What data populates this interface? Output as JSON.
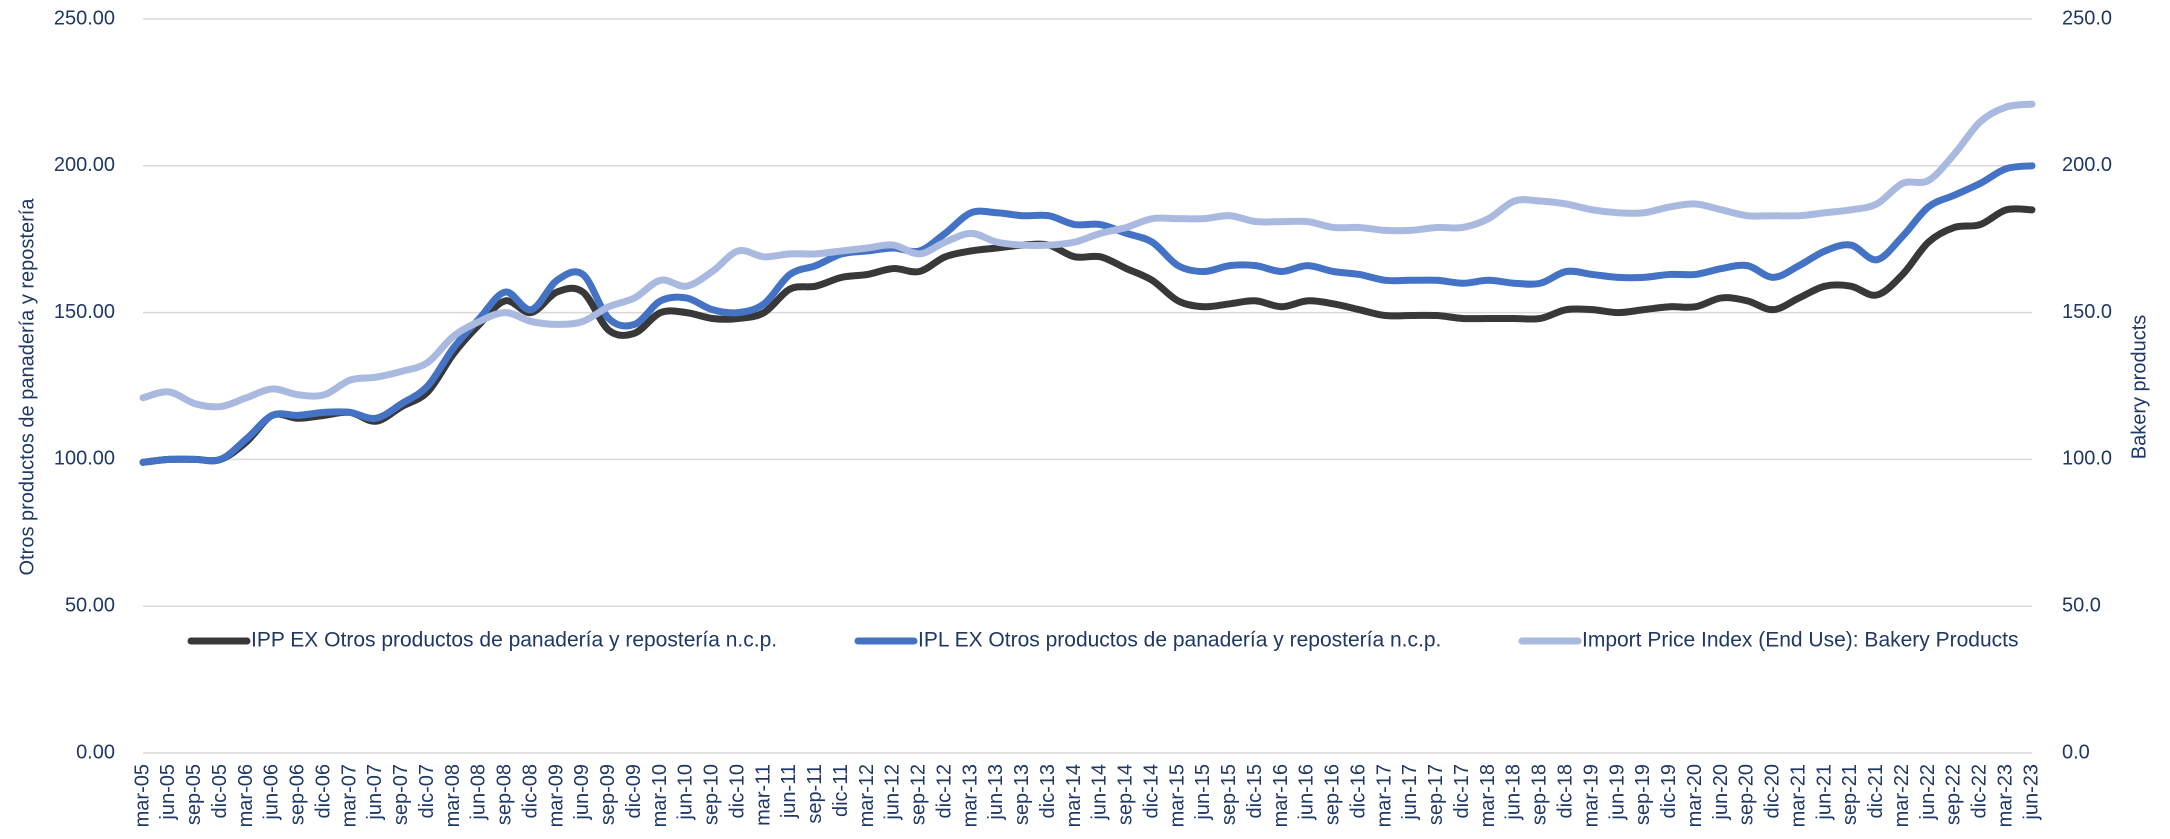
{
  "chart_data": {
    "type": "line",
    "y_label": "Otros productos de panadería y repostería",
    "y2_label": "Bakery products",
    "categories": [
      "mar-05",
      "jun-05",
      "sep-05",
      "dic-05",
      "mar-06",
      "jun-06",
      "sep-06",
      "dic-06",
      "mar-07",
      "jun-07",
      "sep-07",
      "dic-07",
      "mar-08",
      "jun-08",
      "sep-08",
      "dic-08",
      "mar-09",
      "jun-09",
      "sep-09",
      "dic-09",
      "mar-10",
      "jun-10",
      "sep-10",
      "dic-10",
      "mar-11",
      "jun-11",
      "sep-11",
      "dic-11",
      "mar-12",
      "jun-12",
      "sep-12",
      "dic-12",
      "mar-13",
      "jun-13",
      "sep-13",
      "dic-13",
      "mar-14",
      "jun-14",
      "sep-14",
      "dic-14",
      "mar-15",
      "jun-15",
      "sep-15",
      "dic-15",
      "mar-16",
      "jun-16",
      "sep-16",
      "dic-16",
      "mar-17",
      "jun-17",
      "sep-17",
      "dic-17",
      "mar-18",
      "jun-18",
      "sep-18",
      "dic-18",
      "mar-19",
      "jun-19",
      "sep-19",
      "dic-19",
      "mar-20",
      "jun-20",
      "sep-20",
      "dic-20",
      "mar-21",
      "jun-21",
      "sep-21",
      "dic-21",
      "mar-22",
      "jun-22",
      "sep-22",
      "dic-22",
      "mar-23",
      "jun-23"
    ],
    "series": [
      {
        "name": "IPP EX Otros productos de panadería y repostería n.c.p.",
        "color": "#383838",
        "values": [
          99,
          100,
          100,
          100,
          106,
          115,
          114,
          115,
          116,
          113,
          118,
          123,
          136,
          146,
          154,
          150,
          157,
          157,
          144,
          143,
          150,
          150,
          148,
          148,
          150,
          158,
          159,
          162,
          163,
          165,
          164,
          169,
          171,
          172,
          173,
          173,
          169,
          169,
          165,
          161,
          154,
          152,
          153,
          154,
          152,
          154,
          153,
          151,
          149,
          149,
          149,
          148,
          148,
          148,
          148,
          151,
          151,
          150,
          151,
          152,
          152,
          155,
          154,
          151,
          155,
          159,
          159,
          156,
          163,
          174,
          179,
          180,
          185,
          185
        ]
      },
      {
        "name": "IPL EX Otros productos de panadería y repostería n.c.p.",
        "color": "#4472c4",
        "values": [
          99,
          100,
          100,
          100,
          107,
          115,
          115,
          116,
          116,
          114,
          119,
          125,
          138,
          148,
          157,
          151,
          161,
          163,
          148,
          146,
          154,
          155,
          151,
          150,
          153,
          163,
          166,
          170,
          171,
          172,
          171,
          177,
          184,
          184,
          183,
          183,
          180,
          180,
          177,
          174,
          166,
          164,
          166,
          166,
          164,
          166,
          164,
          163,
          161,
          161,
          161,
          160,
          161,
          160,
          160,
          164,
          163,
          162,
          162,
          163,
          163,
          165,
          166,
          162,
          166,
          171,
          173,
          168,
          176,
          186,
          190,
          194,
          199,
          200
        ]
      },
      {
        "name": "Import Price Index (End Use): Bakery Products",
        "color": "#a9b9e0",
        "axis": "y2",
        "values": [
          121,
          123,
          119,
          118,
          121,
          124,
          122,
          122,
          127,
          128,
          130,
          133,
          142,
          147,
          150,
          147,
          146,
          147,
          152,
          155,
          161,
          159,
          164,
          171,
          169,
          170,
          170,
          171,
          172,
          173,
          170,
          174,
          177,
          174,
          173,
          173,
          174,
          177,
          179,
          182,
          182,
          182,
          183,
          181,
          181,
          181,
          179,
          179,
          178,
          178,
          179,
          179,
          182,
          188,
          188,
          187,
          185,
          184,
          184,
          186,
          187,
          185,
          183,
          183,
          183,
          184,
          185,
          187,
          194,
          195,
          204,
          215,
          220,
          221
        ]
      }
    ],
    "ylim": [
      0,
      250
    ],
    "yticks": [
      {
        "value": 0,
        "label": "0.00"
      },
      {
        "value": 50,
        "label": "50.00"
      },
      {
        "value": 100,
        "label": "100.00"
      },
      {
        "value": 150,
        "label": "150.00"
      },
      {
        "value": 200,
        "label": "200.00"
      },
      {
        "value": 250,
        "label": "250.00"
      }
    ],
    "y2lim": [
      0,
      250
    ],
    "y2ticks": [
      {
        "value": 0,
        "label": "0.0"
      },
      {
        "value": 50,
        "label": "50.0"
      },
      {
        "value": 100,
        "label": "100.0"
      },
      {
        "value": 150,
        "label": "150.0"
      },
      {
        "value": 200,
        "label": "200.0"
      },
      {
        "value": 250,
        "label": "250.0"
      }
    ],
    "grid": true,
    "legend": "bottom"
  }
}
